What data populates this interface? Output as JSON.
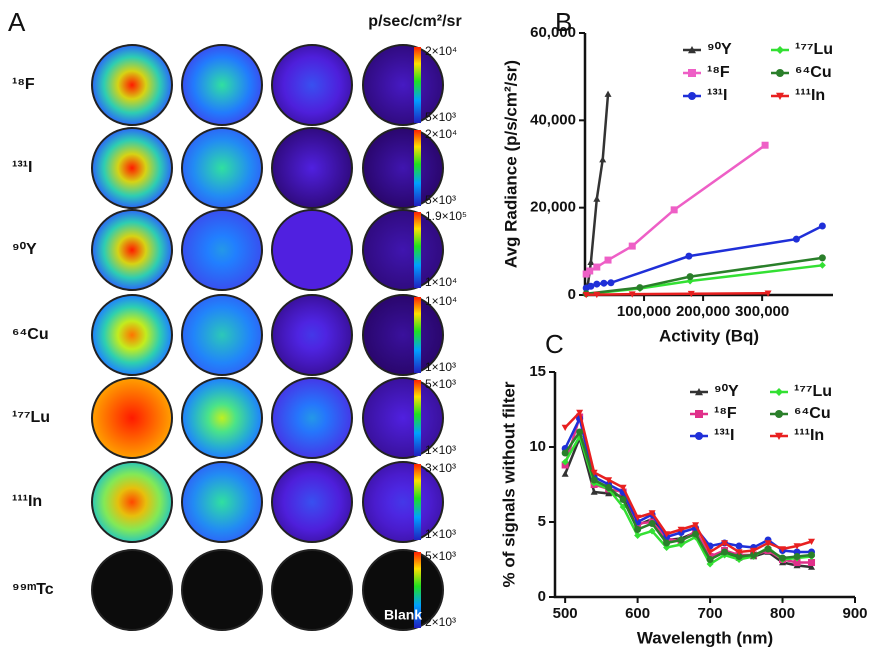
{
  "panel_a": {
    "label": "A",
    "unit": "p/sec/cm²/sr",
    "blank": "Blank",
    "rows": [
      {
        "name": "¹⁸F",
        "max": "2×10⁴",
        "min": "5×10³"
      },
      {
        "name": "¹³¹I",
        "max": "2×10⁴",
        "min": "5×10³"
      },
      {
        "name": "⁹⁰Y",
        "max": "1.9×10⁵",
        "min": "1×10⁴"
      },
      {
        "name": "⁶⁴Cu",
        "max": "1×10⁴",
        "min": "1×10³"
      },
      {
        "name": "¹⁷⁷Lu",
        "max": "5×10³",
        "min": "1×10³"
      },
      {
        "name": "¹¹¹In",
        "max": "3×10³",
        "min": "1×10³"
      },
      {
        "name": "⁹⁹ᵐTc",
        "max": "5×10³",
        "min": "2×10³"
      }
    ]
  },
  "chart_data": [
    {
      "type": "line",
      "label": "B",
      "xlabel": "Activity (Bq)",
      "ylabel": "Avg Radiance (p/s/cm²/sr)",
      "xlim": [
        0,
        420000
      ],
      "ylim": [
        0,
        60000
      ],
      "xticks": [
        {
          "value": 100000,
          "label": "100,000"
        },
        {
          "value": 200000,
          "label": "200,000"
        },
        {
          "value": 300000,
          "label": "300,000"
        }
      ],
      "yticks": [
        0,
        {
          "value": 20000,
          "label": "20,000"
        },
        {
          "value": 40000,
          "label": "40,000"
        },
        {
          "value": 60000,
          "label": "60,000"
        }
      ],
      "legend": "upper right",
      "series": [
        {
          "name": "⁹⁰Y",
          "color": "#333333",
          "marker": "triangle",
          "x": [
            1000,
            5000,
            10000,
            20000,
            30000,
            39000
          ],
          "values": [
            700,
            2500,
            7500,
            22000,
            31000,
            46000
          ]
        },
        {
          "name": "¹⁸F",
          "color": "#ee5fc6",
          "marker": "square",
          "x": [
            2000,
            8000,
            20000,
            39000,
            80000,
            151000,
            305000
          ],
          "values": [
            4800,
            5500,
            6400,
            8000,
            11200,
            19500,
            34300
          ]
        },
        {
          "name": "¹³¹I",
          "color": "#1f2fd8",
          "marker": "circle",
          "x": [
            2000,
            10000,
            20000,
            32000,
            44000,
            176000,
            358000,
            402000
          ],
          "values": [
            1600,
            2000,
            2500,
            2700,
            2800,
            8900,
            12800,
            15800
          ]
        },
        {
          "name": "¹⁷⁷Lu",
          "color": "#33e033",
          "marker": "diamond",
          "x": [
            2000,
            93000,
            178000,
            402000
          ],
          "values": [
            200,
            1500,
            3200,
            6800
          ]
        },
        {
          "name": "⁶⁴Cu",
          "color": "#2a7f2a",
          "marker": "circle",
          "x": [
            2000,
            93000,
            178000,
            402000
          ],
          "values": [
            300,
            1700,
            4200,
            8500
          ]
        },
        {
          "name": "¹¹¹In",
          "color": "#e82020",
          "marker": "triangle-down",
          "x": [
            2000,
            20000,
            80000,
            180000,
            310000
          ],
          "values": [
            50,
            100,
            200,
            300,
            400
          ]
        }
      ]
    },
    {
      "type": "line",
      "label": "C",
      "xlabel": "Wavelength (nm)",
      "ylabel": "% of signals without filter",
      "xlim": [
        486,
        900
      ],
      "ylim": [
        0,
        15
      ],
      "xticks": [
        500,
        600,
        700,
        800,
        900
      ],
      "yticks": [
        0,
        5,
        10,
        15
      ],
      "legend": "upper right",
      "x": [
        500,
        520,
        540,
        560,
        580,
        600,
        620,
        640,
        660,
        680,
        700,
        720,
        740,
        760,
        780,
        800,
        820,
        840
      ],
      "series": [
        {
          "name": "⁹⁰Y",
          "color": "#333333",
          "marker": "triangle",
          "values": [
            8.2,
            10.6,
            7.0,
            6.9,
            6.7,
            4.8,
            5.2,
            3.8,
            3.9,
            4.3,
            2.6,
            3.0,
            2.6,
            2.7,
            3.0,
            2.3,
            2.1,
            2.0
          ]
        },
        {
          "name": "¹⁸F",
          "color": "#e0308a",
          "marker": "square",
          "values": [
            8.8,
            12.0,
            7.5,
            7.2,
            7.0,
            4.9,
            5.0,
            3.9,
            3.7,
            4.4,
            2.7,
            3.1,
            2.8,
            2.8,
            3.1,
            2.5,
            2.3,
            2.3
          ]
        },
        {
          "name": "¹³¹I",
          "color": "#1f2fd8",
          "marker": "circle",
          "values": [
            9.9,
            11.9,
            8.0,
            7.5,
            7.0,
            5.0,
            5.5,
            4.0,
            4.3,
            4.6,
            3.4,
            3.6,
            3.4,
            3.3,
            3.8,
            3.1,
            3.0,
            3.0
          ]
        },
        {
          "name": "¹⁷⁷Lu",
          "color": "#33e033",
          "marker": "diamond",
          "values": [
            9.0,
            10.7,
            7.6,
            7.2,
            6.0,
            4.1,
            4.4,
            3.3,
            3.5,
            4.0,
            2.2,
            2.8,
            2.5,
            2.7,
            3.3,
            2.5,
            2.6,
            2.7
          ]
        },
        {
          "name": "⁶⁴Cu",
          "color": "#2a7f2a",
          "marker": "circle",
          "values": [
            9.6,
            11.0,
            7.8,
            7.3,
            6.5,
            4.5,
            4.9,
            3.6,
            3.8,
            4.2,
            2.5,
            3.0,
            2.7,
            2.8,
            3.2,
            2.6,
            2.7,
            2.8
          ]
        },
        {
          "name": "¹¹¹In",
          "color": "#e82020",
          "marker": "triangle-down",
          "values": [
            11.3,
            12.3,
            8.3,
            7.8,
            7.3,
            5.3,
            5.6,
            4.2,
            4.5,
            4.8,
            3.0,
            3.6,
            3.0,
            3.1,
            3.6,
            3.2,
            3.4,
            3.7
          ]
        }
      ]
    }
  ]
}
